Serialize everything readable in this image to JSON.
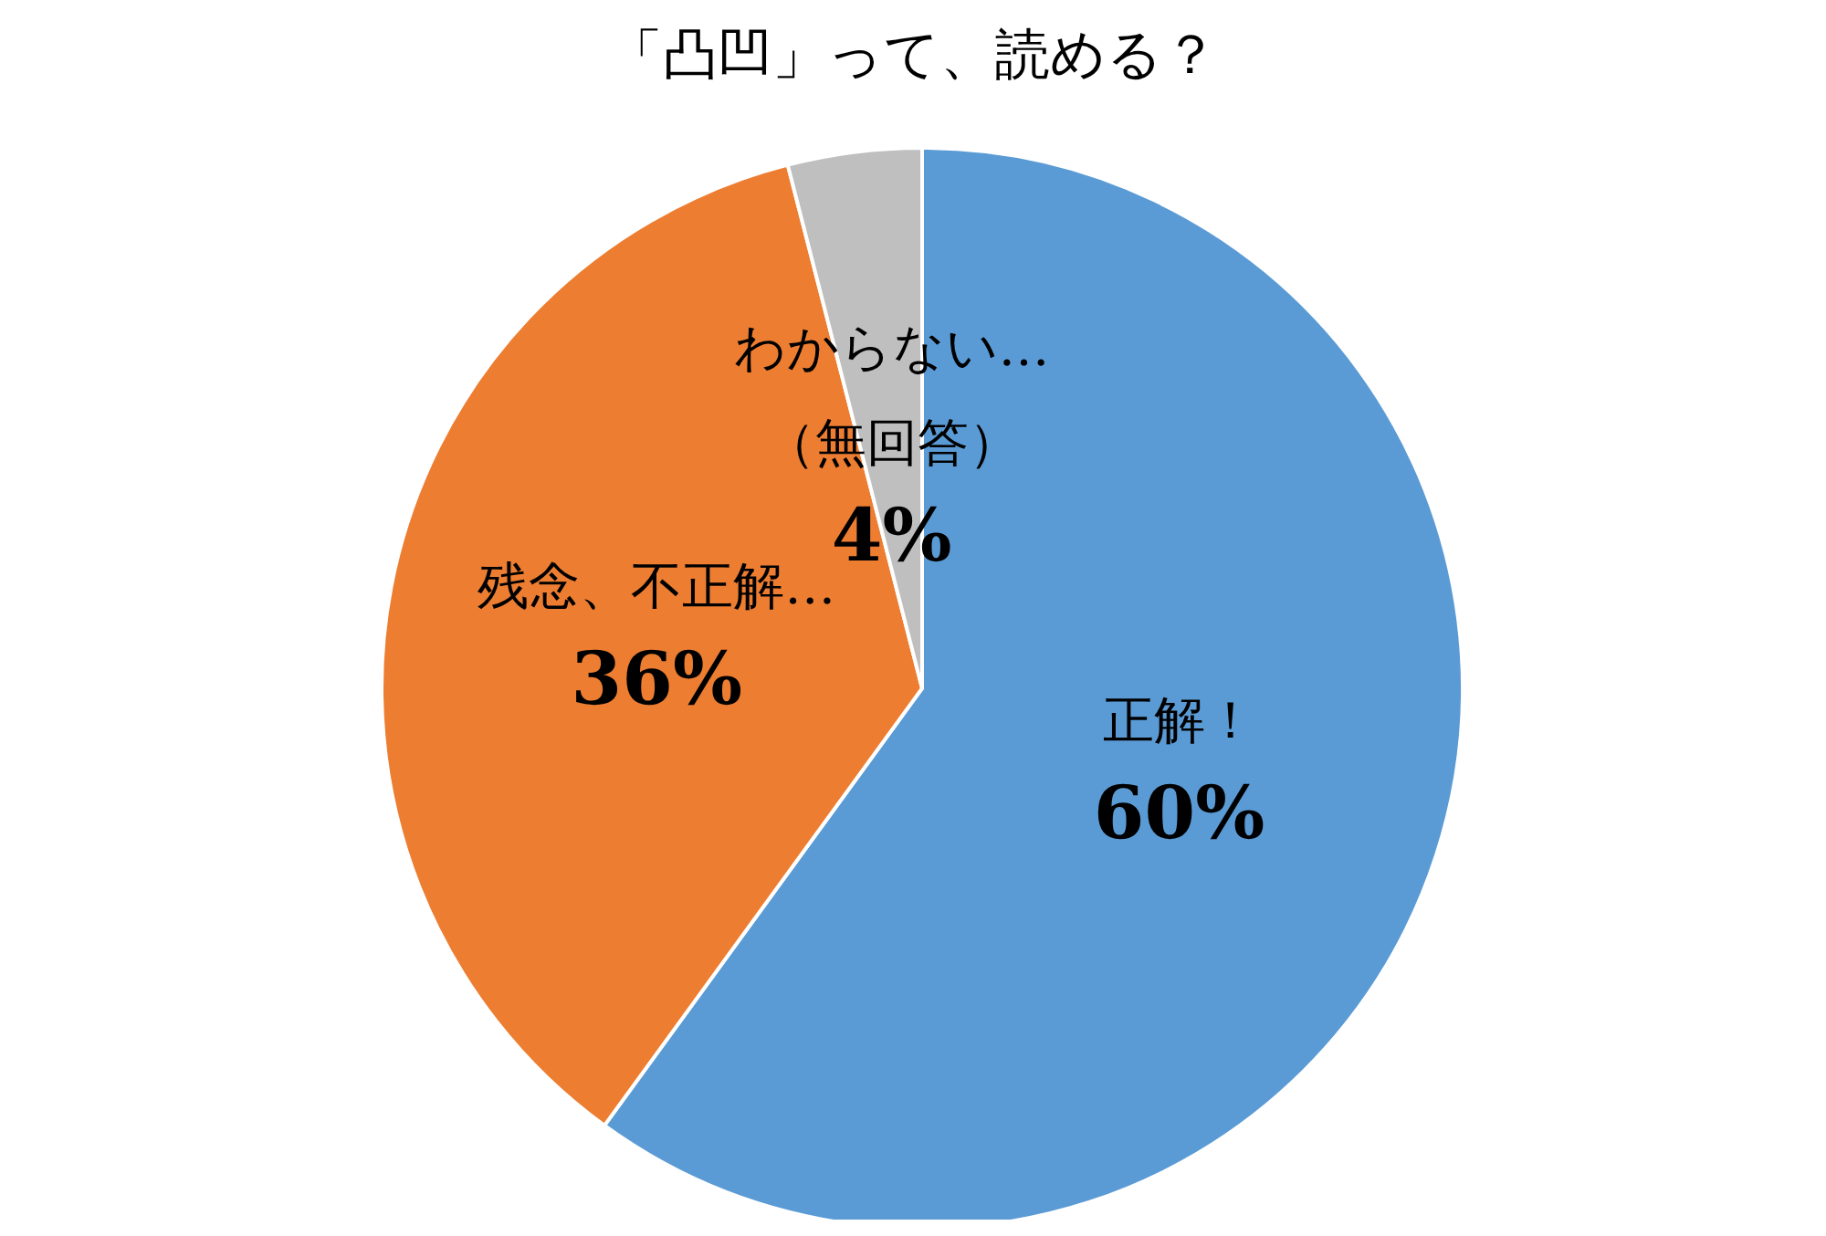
{
  "chart_data": {
    "type": "pie",
    "title": "「凸凹」って、読める？",
    "categories": [
      "正解！",
      "残念、不正解…",
      "わからない…\n（無回答）"
    ],
    "values": [
      60,
      36,
      4
    ],
    "colors": [
      "#5b9bd5",
      "#ed7d31",
      "#bfbfbf"
    ],
    "value_labels": [
      "60%",
      "36%",
      "4%"
    ]
  }
}
